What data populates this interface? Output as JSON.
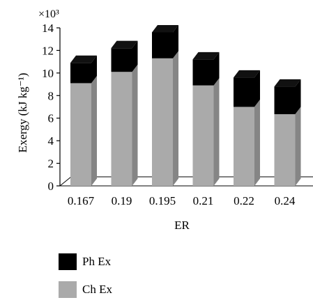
{
  "chart_data": {
    "type": "bar",
    "stacked": true,
    "three_d": true,
    "categories": [
      "0.167",
      "0.19",
      "0.195",
      "0.21",
      "0.22",
      "0.24"
    ],
    "series": [
      {
        "name": "Ch Ex",
        "values": [
          9.1,
          10.1,
          11.3,
          8.9,
          7.0,
          6.35
        ],
        "color": "#aaaaaa"
      },
      {
        "name": "Ph Ex",
        "values": [
          1.8,
          2.1,
          2.3,
          2.3,
          2.6,
          2.45
        ],
        "color": "#000000"
      }
    ],
    "xlabel": "ER",
    "ylabel": "Exergy (kJ kg⁻¹)",
    "multiplier": "×10³",
    "ylim": [
      0,
      14
    ],
    "yticks": [
      "0",
      "2",
      "4",
      "6",
      "8",
      "10",
      "12",
      "14"
    ],
    "grid": false,
    "legend_position": "bottom"
  },
  "legend": {
    "items": [
      {
        "label": "Ph Ex",
        "color": "#000000"
      },
      {
        "label": "Ch Ex",
        "color": "#aaaaaa"
      }
    ]
  }
}
